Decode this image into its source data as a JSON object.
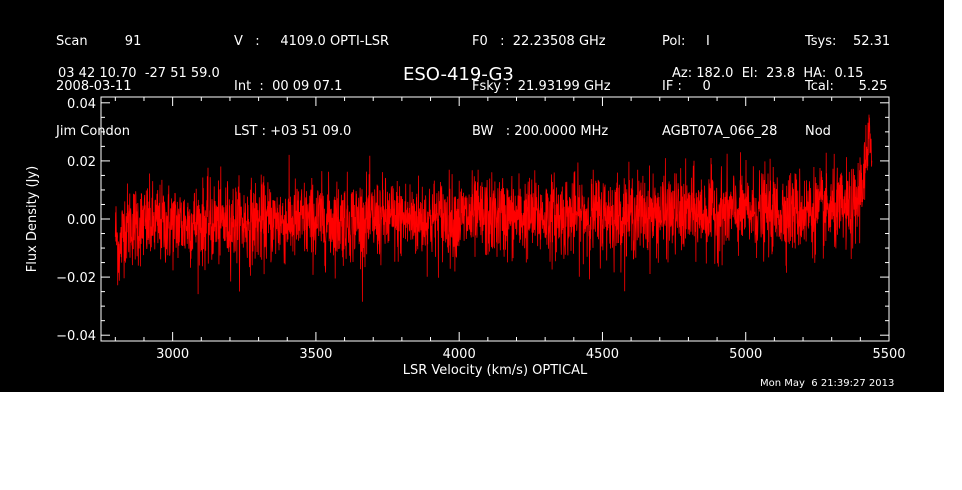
{
  "header": {
    "col1": [
      "Scan         91",
      "2008-03-11",
      "Jim Condon"
    ],
    "col2": [
      "V   :     4109.0 OPTI-LSR",
      "Int  :  00 09 07.1",
      "LST : +03 51 09.0"
    ],
    "col3": [
      "F0   :  22.23508 GHz",
      "Fsky :  21.93199 GHz",
      "BW   : 200.0000 MHz"
    ],
    "col4": [
      "Pol:     I",
      "IF :     0",
      "AGBT07A_066_28"
    ],
    "col5": [
      "Tsys:    52.31",
      "Tcal:      5.25",
      "Nod"
    ]
  },
  "coords": "03 42 10.70  -27 51 59.0",
  "object_name": "ESO-419-G3",
  "azel": "Az: 182.0  El:  23.8  HA:  0.15",
  "timestamp": "Mon May  6 21:39:27 2013",
  "colors": {
    "background": "#000000",
    "foreground": "#ffffff",
    "trace": "#ff0000"
  },
  "chart_data": {
    "type": "line",
    "title": "ESO-419-G3",
    "xlabel": "LSR Velocity (km/s) OPTICAL",
    "ylabel": "Flux Density (Jy)",
    "xlim": [
      2750,
      5500
    ],
    "ylim": [
      -0.042,
      0.042
    ],
    "x_ticks": [
      3000,
      3500,
      4000,
      4500,
      5000,
      5500
    ],
    "x_tick_labels": [
      "3000",
      "3500",
      "4000",
      "4500",
      "5000",
      "5500"
    ],
    "y_ticks": [
      -0.04,
      -0.02,
      0.0,
      0.02,
      0.04
    ],
    "y_tick_labels": [
      "−0.04",
      "−0.02",
      "0.00",
      "0.02",
      "0.04"
    ],
    "grid": false,
    "series": [
      {
        "color": "#ff0000",
        "x_range": [
          2800,
          5440
        ],
        "baseline": 0.0,
        "noise_rms": 0.007,
        "anchors": [
          {
            "x": 2800,
            "y": -0.004
          },
          {
            "x": 2815,
            "y": -0.012
          },
          {
            "x": 2830,
            "y": -0.002
          },
          {
            "x": 5380,
            "y": 0.003
          },
          {
            "x": 5420,
            "y": 0.018
          },
          {
            "x": 5440,
            "y": 0.03
          }
        ]
      }
    ]
  }
}
